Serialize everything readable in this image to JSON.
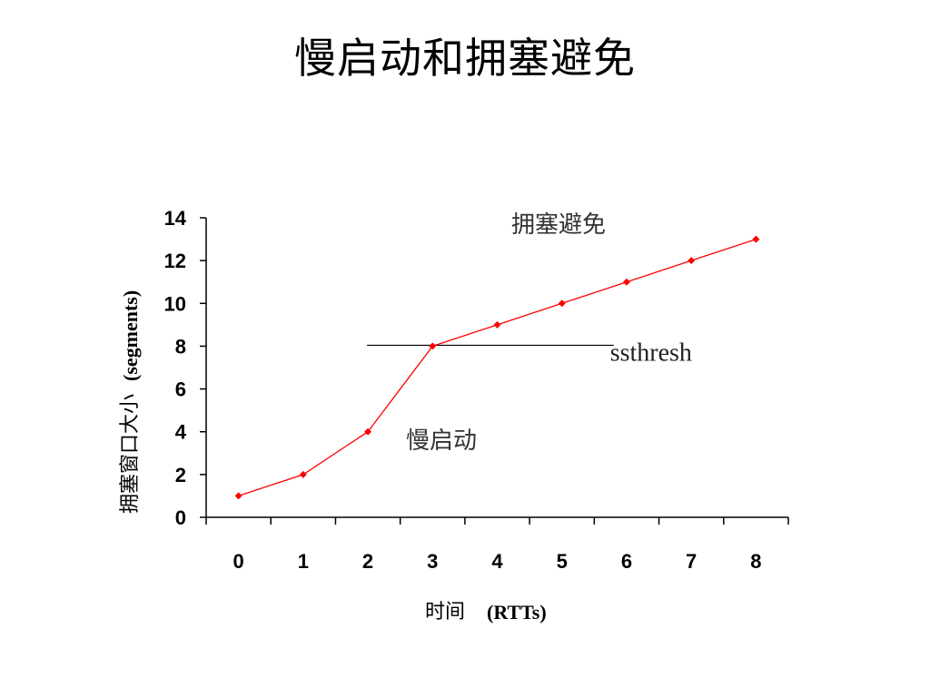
{
  "slide": {
    "title": "慢启动和拥塞避免"
  },
  "chart_data": {
    "type": "line",
    "title": "",
    "xlabel": "时间 (RTTs)",
    "xlabel_cn": "时间",
    "xlabel_unit": "(RTTs)",
    "ylabel_cn": "拥塞窗口大小",
    "ylabel_unit": "(segments)",
    "x": [
      0,
      1,
      2,
      3,
      4,
      5,
      6,
      7,
      8
    ],
    "y_ticks": [
      0,
      2,
      4,
      6,
      8,
      10,
      12,
      14
    ],
    "ylim": [
      0,
      14
    ],
    "series": [
      {
        "name": "",
        "values": [
          1,
          2,
          4,
          8,
          9,
          10,
          11,
          12,
          13
        ],
        "color": "#ff0000"
      }
    ],
    "threshold": {
      "label": "ssthresh",
      "value": 8,
      "x_from": 2,
      "x_to": 5.8
    },
    "annotations": {
      "slow_start": "慢启动",
      "congestion_avoidance": "拥塞避免"
    },
    "grid": false
  }
}
